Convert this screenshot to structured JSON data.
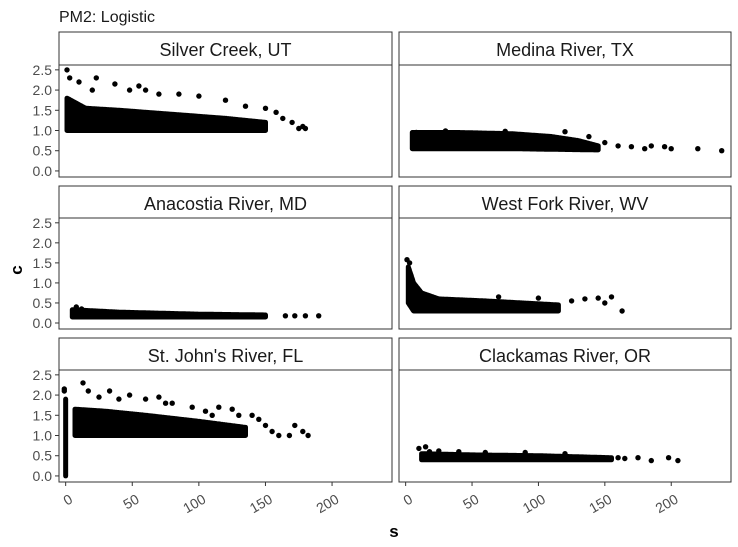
{
  "figure": {
    "title": "PM2: Logistic",
    "xlabel": "s",
    "ylabel": "c"
  },
  "chart_data": {
    "type": "scatter",
    "title": "PM2: Logistic",
    "xlabel": "s",
    "ylabel": "c",
    "xlim": [
      -5,
      245
    ],
    "ylim": [
      -0.15,
      2.62
    ],
    "x_ticks": [
      0,
      50,
      100,
      150,
      200
    ],
    "y_ticks": [
      0.0,
      0.5,
      1.0,
      1.5,
      2.0,
      2.5
    ],
    "x_tick_labels": [
      "0",
      "50",
      "100",
      "150",
      "200"
    ],
    "y_tick_labels": [
      "0.0",
      "0.5",
      "1.0",
      "1.5",
      "2.0",
      "2.5"
    ],
    "grid": false,
    "marker_color": "#000000",
    "facets": [
      {
        "label": "Silver Creek, UT",
        "core": {
          "x0": 1,
          "x1": 150,
          "top": [
            [
              1,
              1.8
            ],
            [
              15,
              1.55
            ],
            [
              40,
              1.5
            ],
            [
              80,
              1.4
            ],
            [
              120,
              1.3
            ],
            [
              150,
              1.2
            ]
          ],
          "bottom": [
            [
              1,
              1.0
            ],
            [
              150,
              1.0
            ]
          ]
        },
        "outliers": [
          [
            1,
            2.5
          ],
          [
            3,
            2.3
          ],
          [
            10,
            2.2
          ],
          [
            20,
            2.0
          ],
          [
            23,
            2.3
          ],
          [
            37,
            2.15
          ],
          [
            48,
            2.0
          ],
          [
            55,
            2.1
          ],
          [
            60,
            2.0
          ],
          [
            70,
            1.9
          ],
          [
            85,
            1.9
          ],
          [
            100,
            1.85
          ],
          [
            120,
            1.75
          ],
          [
            135,
            1.6
          ],
          [
            150,
            1.55
          ],
          [
            158,
            1.45
          ],
          [
            163,
            1.3
          ],
          [
            170,
            1.2
          ],
          [
            175,
            1.05
          ],
          [
            178,
            1.1
          ],
          [
            180,
            1.05
          ]
        ]
      },
      {
        "label": "Medina River, TX",
        "core": {
          "x0": 5,
          "x1": 145,
          "top": [
            [
              5,
              0.95
            ],
            [
              40,
              0.95
            ],
            [
              80,
              0.92
            ],
            [
              110,
              0.85
            ],
            [
              130,
              0.75
            ],
            [
              145,
              0.62
            ]
          ],
          "bottom": [
            [
              5,
              0.55
            ],
            [
              80,
              0.55
            ],
            [
              145,
              0.52
            ]
          ]
        },
        "outliers": [
          [
            8,
            0.95
          ],
          [
            30,
            0.99
          ],
          [
            75,
            0.98
          ],
          [
            120,
            0.97
          ],
          [
            138,
            0.85
          ],
          [
            150,
            0.7
          ],
          [
            160,
            0.62
          ],
          [
            170,
            0.6
          ],
          [
            180,
            0.55
          ],
          [
            185,
            0.62
          ],
          [
            195,
            0.6
          ],
          [
            200,
            0.55
          ],
          [
            220,
            0.55
          ],
          [
            238,
            0.5
          ]
        ]
      },
      {
        "label": "Anacostia River, MD",
        "core": {
          "x0": 5,
          "x1": 150,
          "top": [
            [
              5,
              0.33
            ],
            [
              40,
              0.27
            ],
            [
              100,
              0.22
            ],
            [
              150,
              0.2
            ]
          ],
          "bottom": [
            [
              5,
              0.15
            ],
            [
              150,
              0.15
            ]
          ]
        },
        "outliers": [
          [
            8,
            0.4
          ],
          [
            12,
            0.35
          ],
          [
            165,
            0.18
          ],
          [
            172,
            0.18
          ],
          [
            180,
            0.18
          ],
          [
            190,
            0.18
          ]
        ]
      },
      {
        "label": "West Fork River, WV",
        "core": {
          "x0": 2,
          "x1": 115,
          "top": [
            [
              2,
              1.4
            ],
            [
              6,
              1.0
            ],
            [
              12,
              0.75
            ],
            [
              25,
              0.6
            ],
            [
              60,
              0.55
            ],
            [
              115,
              0.45
            ]
          ],
          "bottom": [
            [
              2,
              0.5
            ],
            [
              6,
              0.3
            ],
            [
              115,
              0.3
            ]
          ]
        },
        "outliers": [
          [
            1,
            1.58
          ],
          [
            3,
            1.5
          ],
          [
            70,
            0.65
          ],
          [
            100,
            0.62
          ],
          [
            125,
            0.55
          ],
          [
            135,
            0.6
          ],
          [
            145,
            0.62
          ],
          [
            155,
            0.65
          ],
          [
            150,
            0.5
          ],
          [
            163,
            0.3
          ]
        ]
      },
      {
        "label": "St. John's River, FL",
        "core": {
          "x0": 7,
          "x1": 135,
          "top": [
            [
              7,
              1.65
            ],
            [
              30,
              1.6
            ],
            [
              60,
              1.5
            ],
            [
              100,
              1.35
            ],
            [
              135,
              1.2
            ]
          ],
          "bottom": [
            [
              7,
              1.0
            ],
            [
              135,
              1.0
            ]
          ]
        },
        "spike": {
          "x": 0,
          "c0": 0.0,
          "c1": 1.9
        },
        "outliers": [
          [
            -1,
            2.1
          ],
          [
            -1,
            2.15
          ],
          [
            13,
            2.3
          ],
          [
            17,
            2.1
          ],
          [
            25,
            1.95
          ],
          [
            33,
            2.1
          ],
          [
            40,
            1.9
          ],
          [
            48,
            2.0
          ],
          [
            60,
            1.9
          ],
          [
            70,
            1.95
          ],
          [
            75,
            1.8
          ],
          [
            80,
            1.8
          ],
          [
            95,
            1.7
          ],
          [
            105,
            1.6
          ],
          [
            110,
            1.5
          ],
          [
            115,
            1.7
          ],
          [
            125,
            1.65
          ],
          [
            130,
            1.5
          ],
          [
            140,
            1.5
          ],
          [
            145,
            1.4
          ],
          [
            150,
            1.25
          ],
          [
            155,
            1.1
          ],
          [
            160,
            1.0
          ],
          [
            168,
            1.0
          ],
          [
            172,
            1.25
          ],
          [
            178,
            1.1
          ],
          [
            182,
            1.0
          ]
        ]
      },
      {
        "label": "Clackamas River, OR",
        "core": {
          "x0": 12,
          "x1": 155,
          "top": [
            [
              12,
              0.55
            ],
            [
              50,
              0.52
            ],
            [
              100,
              0.5
            ],
            [
              155,
              0.45
            ]
          ],
          "bottom": [
            [
              12,
              0.4
            ],
            [
              155,
              0.4
            ]
          ]
        },
        "outliers": [
          [
            10,
            0.68
          ],
          [
            15,
            0.72
          ],
          [
            18,
            0.6
          ],
          [
            25,
            0.62
          ],
          [
            40,
            0.6
          ],
          [
            60,
            0.58
          ],
          [
            90,
            0.58
          ],
          [
            120,
            0.55
          ],
          [
            160,
            0.45
          ],
          [
            165,
            0.43
          ],
          [
            175,
            0.45
          ],
          [
            185,
            0.38
          ],
          [
            198,
            0.45
          ],
          [
            205,
            0.38
          ]
        ]
      }
    ]
  }
}
